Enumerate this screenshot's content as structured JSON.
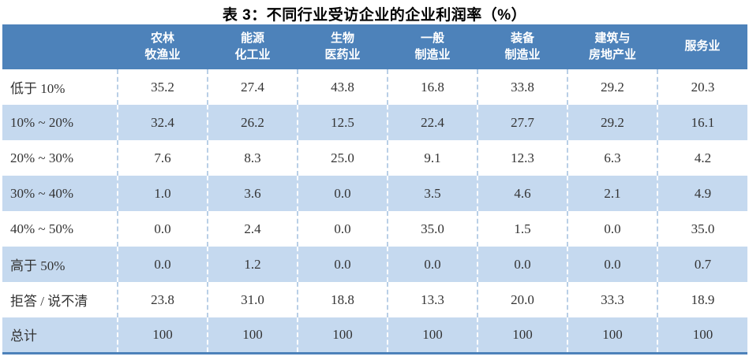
{
  "title": "表 3：不同行业受访企业的企业利润率（%）",
  "table": {
    "corner_label": "",
    "column_headers": [
      "农林\n牧渔业",
      "能源\n化工业",
      "生物\n医药业",
      "一般\n制造业",
      "装备\n制造业",
      "建筑与\n房地产业",
      "服务业"
    ],
    "rows": [
      {
        "label": "低于 10%",
        "values": [
          "35.2",
          "27.4",
          "43.8",
          "16.8",
          "33.8",
          "29.2",
          "20.3"
        ]
      },
      {
        "label": "10% ~ 20%",
        "values": [
          "32.4",
          "26.2",
          "12.5",
          "22.4",
          "27.7",
          "29.2",
          "16.1"
        ]
      },
      {
        "label": "20% ~ 30%",
        "values": [
          "7.6",
          "8.3",
          "25.0",
          "9.1",
          "12.3",
          "6.3",
          "4.2"
        ]
      },
      {
        "label": "30% ~ 40%",
        "values": [
          "1.0",
          "3.6",
          "0.0",
          "3.5",
          "4.6",
          "2.1",
          "4.9"
        ]
      },
      {
        "label": "40% ~ 50%",
        "values": [
          "0.0",
          "2.4",
          "0.0",
          "35.0",
          "1.5",
          "0.0",
          "35.0"
        ]
      },
      {
        "label": "高于 50%",
        "values": [
          "0.0",
          "1.2",
          "0.0",
          "0.0",
          "0.0",
          "0.0",
          "0.7"
        ]
      },
      {
        "label": "拒答 / 说不清",
        "values": [
          "23.8",
          "31.0",
          "18.8",
          "13.3",
          "20.0",
          "33.3",
          "18.9"
        ]
      },
      {
        "label": "总计",
        "values": [
          "100",
          "100",
          "100",
          "100",
          "100",
          "100",
          "100"
        ]
      }
    ]
  },
  "colors": {
    "header_bg": "#4D82BA",
    "header_text": "#FFFFFF",
    "row_bg": "#FFFFFF",
    "row_alt_bg": "#C5D9EF",
    "dash_on_white": "#B9CFE6",
    "dash_on_blue": "#FFFFFF",
    "bottom_border": "#4D82BA",
    "data_text": "#333333",
    "title_text": "#000000"
  }
}
